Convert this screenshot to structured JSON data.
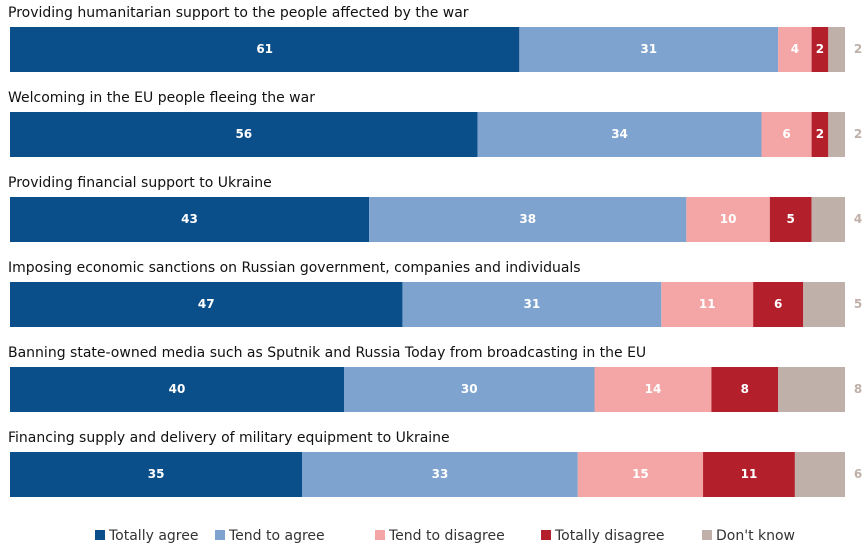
{
  "chart_data": {
    "type": "stacked-bar",
    "categories": [
      "Providing humanitarian support to the people affected by the war",
      "Welcoming in the EU people fleeing the war",
      "Providing financial support to Ukraine",
      "Imposing economic sanctions on Russian government, companies and individuals",
      "Banning state-owned media such as Sputnik and Russia Today from broadcasting in the EU",
      "Financing supply and delivery of military equipment to Ukraine"
    ],
    "xlim": [
      0,
      100
    ],
    "legend": "bottom",
    "series": [
      {
        "name": "Totally agree",
        "color": "#0b4f8a",
        "values": [
          61,
          56,
          43,
          47,
          40,
          35
        ]
      },
      {
        "name": "Tend to agree",
        "color": "#7fa3cf",
        "values": [
          31,
          34,
          38,
          31,
          30,
          33
        ]
      },
      {
        "name": "Tend to disagree",
        "color": "#f4a6a6",
        "values": [
          4,
          6,
          10,
          11,
          14,
          15
        ]
      },
      {
        "name": "Totally disagree",
        "color": "#b3202c",
        "values": [
          2,
          2,
          5,
          6,
          8,
          11
        ]
      },
      {
        "name": "Don't know",
        "color": "#bfb1a9",
        "values": [
          2,
          2,
          4,
          5,
          8,
          6
        ]
      }
    ]
  }
}
